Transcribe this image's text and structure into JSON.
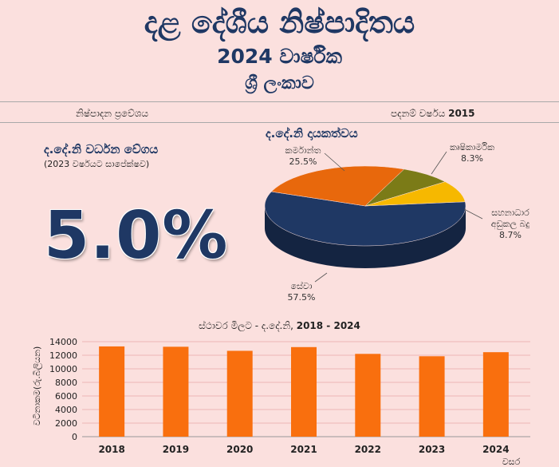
{
  "header": {
    "title": "දළ දේශීය නිෂ්පාදිතය",
    "subtitle": "2024 වාර්ෂික",
    "country": "ශ්‍රී ලංකාව"
  },
  "meta": {
    "left": "නිෂ්පාදන ප්‍රවේශය",
    "right_label": "පදනම් වර්ෂය",
    "right_year": "2015"
  },
  "growth": {
    "title": "ද.දේ.නි වර්ධන වේගය",
    "subtitle": "(2023 වර්ෂයට සාපේක්ෂව)",
    "value": "5.0%"
  },
  "chart_data": [
    {
      "type": "pie",
      "title": "ද.දේ.නි දායකත්වය",
      "slices": [
        {
          "label": "සේවා",
          "value": 57.5,
          "display": "57.5%",
          "color": "#1f3864"
        },
        {
          "label": "කර්මාන්ත",
          "value": 25.5,
          "display": "25.5%",
          "color": "#e8680c"
        },
        {
          "label": "කෘෂිකාර්මික",
          "value": 8.3,
          "display": "8.3%",
          "color": "#7b7b17"
        },
        {
          "label": "සහනාධාර අඩුකල බදු",
          "value": 8.7,
          "display": "8.7%",
          "color": "#f6b800"
        }
      ]
    },
    {
      "type": "bar",
      "title": "ස්ථාවර මිලට - ද.දේ.නි,",
      "title_years": "2018 - 2024",
      "categories": [
        "2018",
        "2019",
        "2020",
        "2021",
        "2022",
        "2023",
        "2024"
      ],
      "values": [
        13300,
        13250,
        12650,
        13200,
        12200,
        11850,
        12450
      ],
      "ylabel": "වටිනාකම(රු.බිලියන)",
      "xlabel": "වසර",
      "ylim": [
        0,
        14000
      ],
      "yticks": [
        "0",
        "2000",
        "4000",
        "6000",
        "8000",
        "10000",
        "12000",
        "14000"
      ],
      "grid": true,
      "bar_color": "#f96f0e"
    }
  ]
}
